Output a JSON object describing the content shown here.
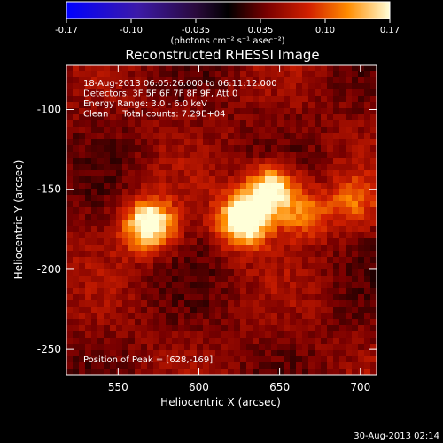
{
  "chart_data": {
    "type": "heatmap",
    "title": "Reconstructed RHESSI Image",
    "xlabel": "Heliocentric X (arcsec)",
    "ylabel": "Heliocentric Y (arcsec)",
    "xlim": [
      518,
      710
    ],
    "ylim": [
      -266,
      -72
    ],
    "x_ticks": [
      550,
      600,
      650,
      700
    ],
    "y_ticks": [
      -100,
      -150,
      -200,
      -250
    ],
    "colorbar": {
      "ticks": [
        "-0.17",
        "-0.10",
        "-0.035",
        "0.035",
        "0.10",
        "0.17"
      ],
      "unit_label": "(photons cm⁻² s⁻¹ asec⁻²)",
      "range": [
        -0.17,
        0.17
      ]
    },
    "info_lines": [
      "18-Aug-2013 06:05:26.000 to 06:11:12.000",
      "Detectors: 3F 5F 6F 7F 8F 9F, Att 0",
      "Energy Range: 3.0 - 6.0 keV",
      "Clean     Total counts: 7.29E+04"
    ],
    "peak_label": "Position of Peak = [628,-169]",
    "footer_date": "30-Aug-2013 02:14",
    "sources": [
      {
        "x": 569,
        "y": -172,
        "peak": 0.155
      },
      {
        "x": 628,
        "y": -169,
        "peak": 0.17
      },
      {
        "x": 645,
        "y": -150,
        "peak": 0.14
      },
      {
        "x": 665,
        "y": -165,
        "peak": 0.07
      },
      {
        "x": 695,
        "y": -158,
        "peak": 0.06
      }
    ]
  }
}
